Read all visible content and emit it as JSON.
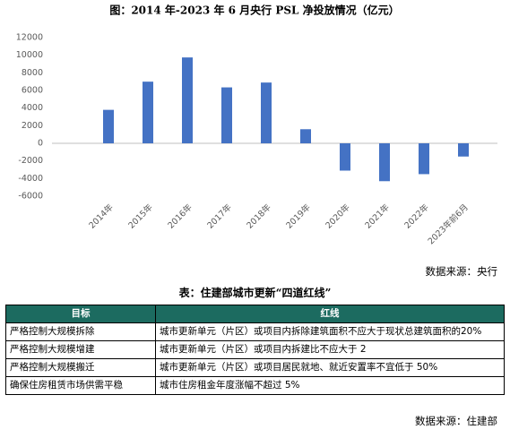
{
  "chart_data": {
    "type": "bar",
    "title": "图：2014 年-2023 年 6 月央行 PSL 净投放情况（亿元）",
    "categories": [
      "2014年",
      "2015年",
      "2016年",
      "2017年",
      "2018年",
      "2019年",
      "2020年",
      "2021年",
      "2022年",
      "2023年前6月"
    ],
    "values": [
      3800,
      7000,
      9750,
      6350,
      6900,
      1600,
      -3100,
      -4300,
      -3500,
      -1500
    ],
    "color": "#4472c4",
    "ylim": [
      -6000,
      12000
    ],
    "yticks": [
      -6000,
      -4000,
      -2000,
      0,
      2000,
      4000,
      6000,
      8000,
      10000,
      12000
    ],
    "grid": false,
    "source": "数据来源：央行"
  },
  "table": {
    "title": "表：住建部城市更新“四道红线”",
    "header": [
      "目标",
      "红线"
    ],
    "rows": [
      [
        "严格控制大规模拆除",
        "城市更新单元（片区）或项目内拆除建筑面积不应大于现状总建筑面积的20%"
      ],
      [
        "严格控制大规模增建",
        "城市更新单元（片区）或项目内拆建比不应大于 2"
      ],
      [
        "严格控制大规模搬迁",
        "城市更新单元（片区）或项目居民就地、就近安置率不宜低于 50%"
      ],
      [
        "确保住房租赁市场供需平稳",
        "城市住房租金年度涨幅不超过 5%"
      ]
    ],
    "source": "数据来源：住建部"
  }
}
